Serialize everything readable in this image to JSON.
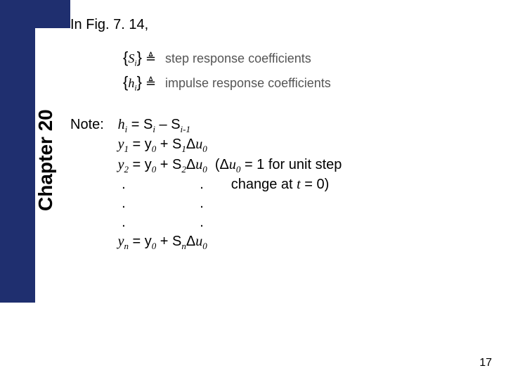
{
  "colors": {
    "sidebar": "#1f2f6f",
    "background": "#ffffff",
    "text": "#000000",
    "def_text": "#555555"
  },
  "chapter_label": "Chapter 20",
  "fig_ref": "In Fig. 7. 14,",
  "definitions": {
    "s_symbol_open": "{",
    "s_symbol_var": "S",
    "s_symbol_sub": "i",
    "s_symbol_close": "}",
    "step_label": "step response coefficients",
    "h_symbol_var": "h",
    "h_symbol_sub": "i",
    "impulse_label": "impulse response coefficients"
  },
  "note_label": "Note:",
  "equations": {
    "l1_a": "h",
    "l1_b": "i",
    "l1_c": " = S",
    "l1_d": "i",
    "l1_e": " – S",
    "l1_f": "i-1",
    "l2_a": "y",
    "l2_b": "1",
    "l2_c": " = y",
    "l2_d": "0",
    "l2_e": " + S",
    "l2_f": "1",
    "l2_g": "u",
    "l2_h": "0",
    "l3_a": "y",
    "l3_b": "2",
    "l3_c": " = y",
    "l3_d": "0",
    "l3_e": " + S",
    "l3_f": "2",
    "l3_g": "u",
    "l3_h": "0",
    "l3_paren_a": "  (",
    "l3_paren_b": "u",
    "l3_paren_c": "0",
    "l3_paren_d": " = 1 for unit step",
    "l4_dot": " .                   .       change at ",
    "l4_t": "t",
    "l4_end": " = 0)",
    "l5_dot": " .                   .",
    "l6_dot": " .                   .",
    "l7_a": "y",
    "l7_b": "n",
    "l7_c": " = y",
    "l7_d": "0",
    "l7_e": " + S",
    "l7_f": "n",
    "l7_g": "u",
    "l7_h": "0"
  },
  "delta_char": "Δ",
  "triangle_char": "≜",
  "page_number": "17"
}
